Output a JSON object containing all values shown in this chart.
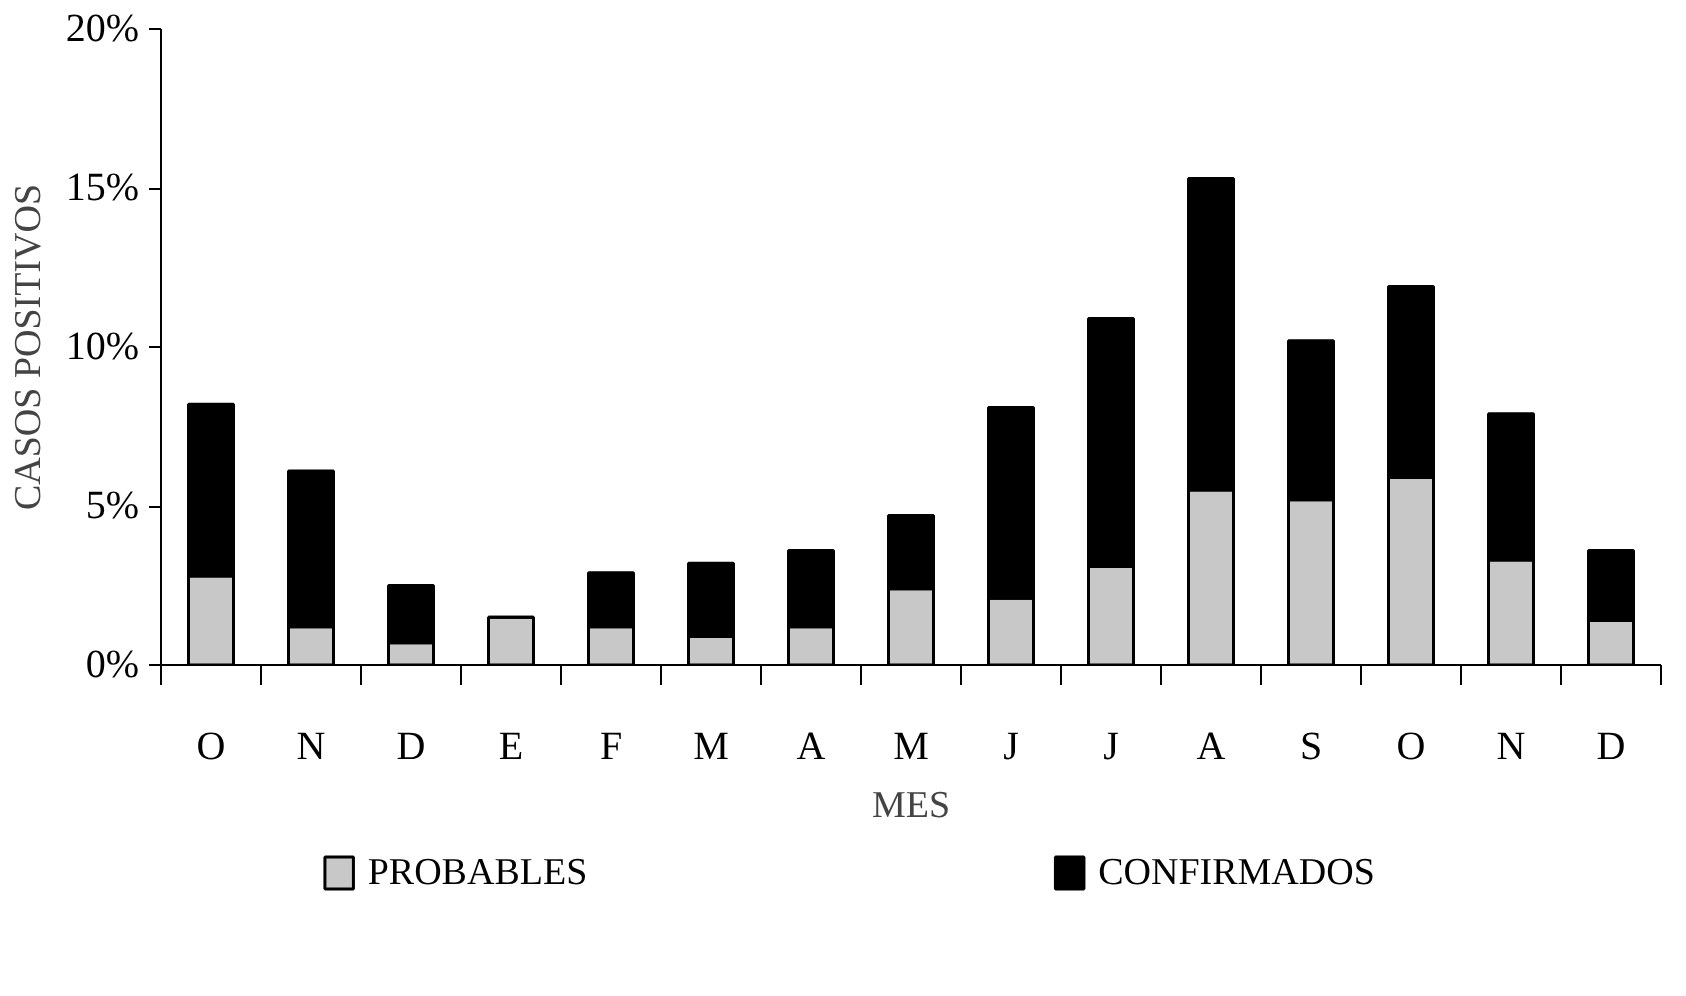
{
  "chart_data": {
    "type": "bar",
    "stacked": true,
    "xlabel": "MES",
    "ylabel": "CASOS POSITIVOS",
    "categories": [
      "O",
      "N",
      "D",
      "E",
      "F",
      "M",
      "A",
      "M",
      "J",
      "J",
      "A",
      "S",
      "O",
      "N",
      "D"
    ],
    "series": [
      {
        "name": "PROBABLES",
        "color": "#c8c8c8",
        "values": [
          2.8,
          1.2,
          0.7,
          1.5,
          1.2,
          0.9,
          1.2,
          2.4,
          2.1,
          3.1,
          5.5,
          5.2,
          5.9,
          3.3,
          1.4
        ]
      },
      {
        "name": "CONFIRMADOS",
        "color": "#000000",
        "values": [
          5.4,
          4.9,
          1.8,
          0,
          1.7,
          2.3,
          2.4,
          2.3,
          6.0,
          7.8,
          9.8,
          5.0,
          6.0,
          4.6,
          2.2
        ]
      }
    ],
    "ylim": [
      0,
      20
    ],
    "yticks": [
      {
        "value": 0,
        "label": "0%"
      },
      {
        "value": 5,
        "label": "5%"
      },
      {
        "value": 10,
        "label": "10%"
      },
      {
        "value": 15,
        "label": "15%"
      },
      {
        "value": 20,
        "label": "20%"
      }
    ],
    "legend": "bottom",
    "grid": false
  }
}
